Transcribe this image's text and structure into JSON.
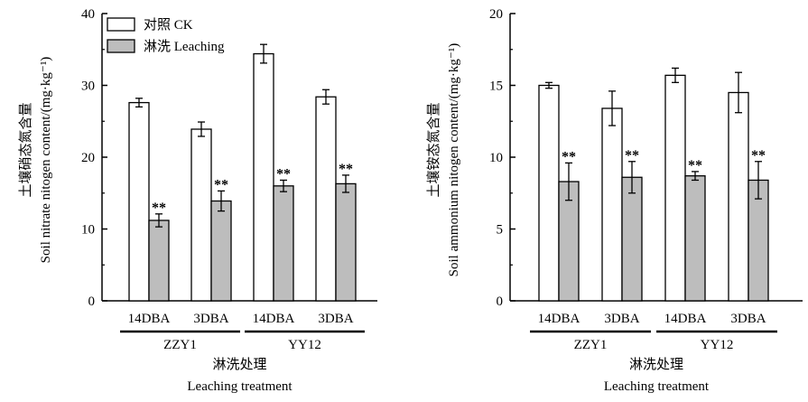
{
  "chart_data": [
    {
      "type": "bar",
      "categories": [
        "14DBA",
        "3DBA",
        "14DBA",
        "3DBA"
      ],
      "groups": [
        {
          "label": "ZZY1",
          "span": [
            0,
            1
          ]
        },
        {
          "label": "YY12",
          "span": [
            2,
            3
          ]
        }
      ],
      "series": [
        {
          "name": "对照  CK",
          "color": "#ffffff",
          "values": [
            27.6,
            23.9,
            34.4,
            28.4
          ],
          "errors": [
            0.6,
            1.0,
            1.3,
            1.0
          ],
          "annotations": [
            "",
            "",
            "",
            ""
          ]
        },
        {
          "name": "淋洗  Leaching",
          "color": "#bdbdbd",
          "values": [
            11.2,
            13.9,
            16.0,
            16.3
          ],
          "errors": [
            0.9,
            1.4,
            0.8,
            1.2
          ],
          "annotations": [
            "**",
            "**",
            "**",
            "**"
          ]
        }
      ],
      "ylabel_cn": "土壤硝态氮含量",
      "ylabel": "Soil nitrate nitogen content/(mg·kg⁻¹)",
      "xlabel_cn": "淋洗处理",
      "xlabel": "Leaching treatment",
      "ylim": [
        0,
        40
      ],
      "yticks": [
        "0",
        "10",
        "20",
        "30",
        "40"
      ],
      "grid": false,
      "legend": "top-left"
    },
    {
      "type": "bar",
      "categories": [
        "14DBA",
        "3DBA",
        "14DBA",
        "3DBA"
      ],
      "groups": [
        {
          "label": "ZZY1",
          "span": [
            0,
            1
          ]
        },
        {
          "label": "YY12",
          "span": [
            2,
            3
          ]
        }
      ],
      "series": [
        {
          "name": "对照  CK",
          "color": "#ffffff",
          "values": [
            15.0,
            13.4,
            15.7,
            14.5
          ],
          "errors": [
            0.2,
            1.2,
            0.5,
            1.4
          ],
          "annotations": [
            "",
            "",
            "",
            ""
          ]
        },
        {
          "name": "淋洗  Leaching",
          "color": "#bdbdbd",
          "values": [
            8.3,
            8.6,
            8.7,
            8.4
          ],
          "errors": [
            1.3,
            1.1,
            0.3,
            1.3
          ],
          "annotations": [
            "**",
            "**",
            "**",
            "**"
          ]
        }
      ],
      "ylabel_cn": "土壤铵态氮含量",
      "ylabel": "Soil ammonium nitogen content/(mg·kg⁻¹)",
      "xlabel_cn": "淋洗处理",
      "xlabel": "Leaching treatment",
      "ylim": [
        0,
        20
      ],
      "yticks": [
        "0",
        "5",
        "10",
        "15",
        "20"
      ],
      "grid": false,
      "legend": "none"
    }
  ]
}
